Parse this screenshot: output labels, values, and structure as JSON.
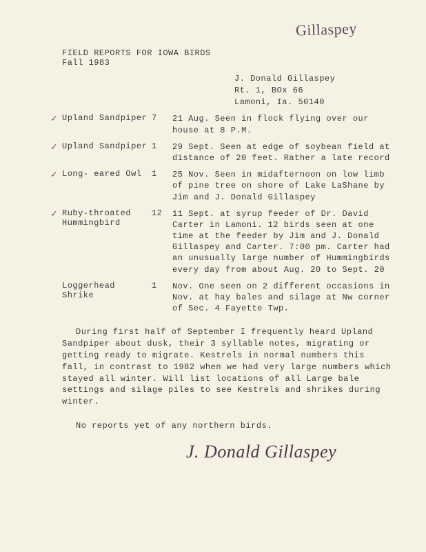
{
  "handwrittenTop": "Gillaspey",
  "title": "FIELD  REPORTS FOR IOWA  BIRDS",
  "season": "Fall         1983",
  "address": {
    "name": "J. Donald Gillaspey",
    "line1": "Rt. 1, BOx 66",
    "line2": "Lamoni, Ia. 50140"
  },
  "records": [
    {
      "checked": true,
      "species": "Upland Sandpiper",
      "count": "7",
      "notes": "21 Aug.   Seen in flock flying  over our house at 8 P.M."
    },
    {
      "checked": true,
      "species": "Upland Sandpiper",
      "count": "1",
      "notes": "29 Sept.    Seen at edge of  soybean field at distance of 20 feet.   Rather a late record"
    },
    {
      "checked": true,
      "species": "Long- eared Owl",
      "count": "1",
      "notes": "25 Nov.   Seen in  midafternoon    on low limb  of pine  tree on shore of Lake LaShane by  Jim and  J. Donald Gillaspey"
    },
    {
      "checked": true,
      "species": "Ruby-throated Hummingbird",
      "count": "12",
      "notes": "11 Sept.  at syrup feeder of Dr. David Carter in Lamoni. 12 birds seen at one time at the feeder by Jim and J. Donald Gillaspey and Carter. 7:00 pm.  Carter had an unusually large number of  Hummingbirds every day from  about Aug. 20  to Sept. 20"
    },
    {
      "checked": false,
      "species": "Loggerhead  Shrike",
      "count": "1",
      "notes": "Nov.   One seen on  2 different  occasions in Nov. at hay bales and silage at Nw corner of  Sec. 4 Fayette Twp."
    }
  ],
  "paragraphs": [
    "During  first half of  September I frequently heard  Upland Sandpiper about dusk, their  3  syllable notes,  migrating or  getting ready to migrate.   Kestrels in normal numbers this fall, in  contrast to  1982  when we had very large numbers which stayed all winter. Will   list locations  of all  Large bale  settings and  silage piles  to see Kestrels and  shrikes during winter.",
    "No reports  yet of any northern birds."
  ],
  "signature": "J. Donald Gillaspey"
}
